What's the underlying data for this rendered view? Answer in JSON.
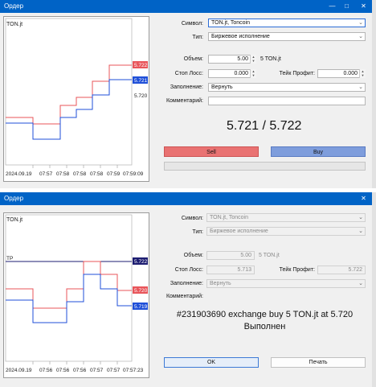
{
  "colors": {
    "titlebar": "#0063c6",
    "bid": "#1f4fd8",
    "ask": "#e8555a",
    "sell": "#e97272",
    "buy": "#7e9ddc"
  },
  "window1": {
    "title": "Ордер",
    "chart": {
      "symbol_label": "TON.jt",
      "price_labels": [
        "5.722",
        "5.721",
        "5.720"
      ],
      "time_labels": [
        "2024.09.19",
        "07:57",
        "07:58",
        "07:58",
        "07:58",
        "07:59",
        "07:59:09"
      ]
    },
    "form": {
      "symbol_label": "Символ:",
      "symbol_value": "TON.jt, Toncoin",
      "type_label": "Тип:",
      "type_value": "Биржевое исполнение",
      "volume_label": "Объем:",
      "volume_value": "5.00",
      "volume_note": "5 TON.jt",
      "sl_label": "Стоп Лосс:",
      "sl_value": "0.000",
      "tp_label": "Тейк Профит:",
      "tp_value": "0.000",
      "fill_label": "Заполнение:",
      "fill_value": "Вернуть",
      "comment_label": "Комментарий:",
      "comment_value": ""
    },
    "quote": "5.721 / 5.722",
    "sell_label": "Sell",
    "buy_label": "Buy"
  },
  "window2": {
    "title": "Ордер",
    "chart": {
      "symbol_label": "TON.jt",
      "tp_marker": "TP",
      "price_labels": [
        "5.722",
        "5.720",
        "5.719"
      ],
      "time_labels": [
        "2024.09.19",
        "07:56",
        "07:56",
        "07:56",
        "07:57",
        "07:57",
        "07:57:23"
      ]
    },
    "form": {
      "symbol_label": "Символ:",
      "symbol_value": "TON.jt, Toncoin",
      "type_label": "Тип:",
      "type_value": "Биржевое исполнение",
      "volume_label": "Объем:",
      "volume_value": "5.00",
      "volume_note": "5 TON.jt",
      "sl_label": "Стоп Лосс:",
      "sl_value": "5.713",
      "tp_label": "Тейк Профит:",
      "tp_value": "5.722",
      "fill_label": "Заполнение:",
      "fill_value": "Вернуть",
      "comment_label": "Комментарий:"
    },
    "result_line1": "#231903690 exchange buy 5 TON.jt at 5.720",
    "result_line2": "Выполнен",
    "ok_label": "OK",
    "print_label": "Печать"
  }
}
